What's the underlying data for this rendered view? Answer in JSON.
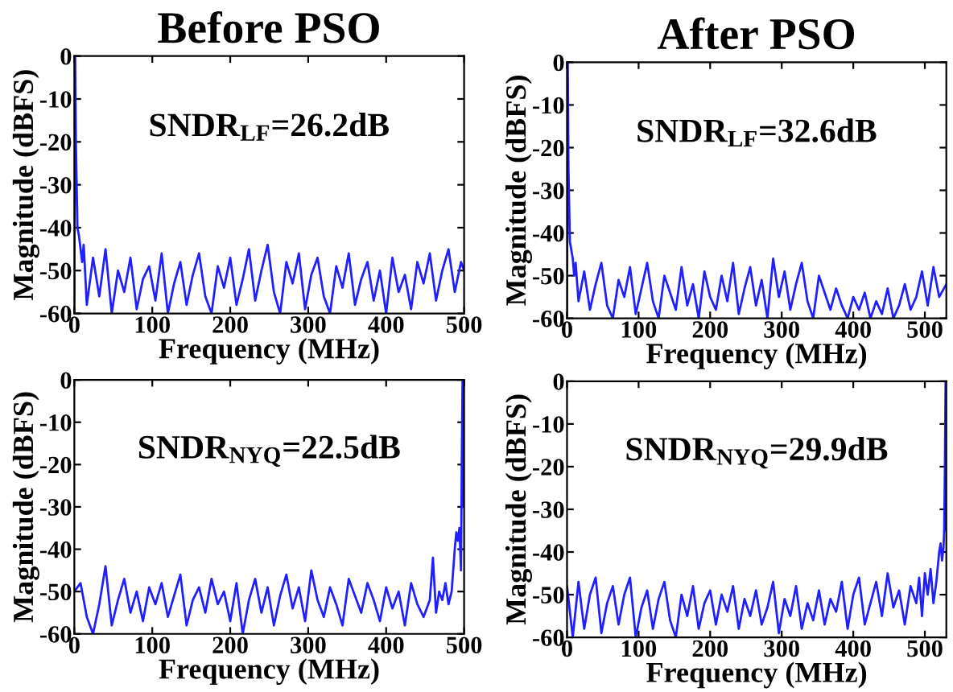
{
  "chart_data": [
    {
      "type": "line",
      "title": "Before PSO",
      "xlabel": "Frequency (MHz)",
      "ylabel": "Magnitude (dBFS)",
      "annotations": [
        "SNDR$_{LF}$=26.2dB"
      ],
      "xlim": [
        0,
        500
      ],
      "ylim": [
        -60,
        0
      ],
      "xticks": [
        0,
        100,
        200,
        300,
        400,
        500
      ],
      "yticks": [
        -60,
        -50,
        -40,
        -30,
        -20,
        -10,
        0
      ],
      "grid": false,
      "legend": false,
      "series": [
        {
          "color": "#1f1fff",
          "x": [
            0,
            1,
            2,
            4,
            6,
            8,
            10,
            12,
            16,
            24,
            32,
            40,
            48,
            56,
            64,
            72,
            80,
            88,
            96,
            104,
            112,
            120,
            128,
            136,
            144,
            152,
            160,
            168,
            176,
            184,
            192,
            200,
            208,
            216,
            224,
            232,
            240,
            248,
            256,
            264,
            272,
            280,
            288,
            296,
            304,
            312,
            320,
            328,
            336,
            344,
            352,
            360,
            368,
            376,
            384,
            392,
            400,
            408,
            416,
            424,
            432,
            440,
            448,
            456,
            464,
            472,
            480,
            488,
            496,
            500
          ],
          "values": [
            -60,
            0,
            -20,
            -40,
            -42,
            -45,
            -48,
            -44,
            -58,
            -47,
            -56,
            -45,
            -60,
            -50,
            -55,
            -47,
            -59,
            -52,
            -49,
            -57,
            -46,
            -60,
            -53,
            -48,
            -58,
            -51,
            -46,
            -56,
            -60,
            -49,
            -54,
            -47,
            -58,
            -52,
            -45,
            -57,
            -50,
            -44,
            -55,
            -60,
            -48,
            -53,
            -46,
            -59,
            -51,
            -47,
            -56,
            -60,
            -49,
            -54,
            -46,
            -58,
            -52,
            -48,
            -57,
            -50,
            -60,
            -47,
            -55,
            -51,
            -59,
            -48,
            -53,
            -46,
            -57,
            -50,
            -45,
            -55,
            -48,
            -50
          ]
        }
      ]
    },
    {
      "type": "line",
      "title": "After PSO",
      "xlabel": "Frequency (MHz)",
      "ylabel": "Magnitude (dBFS)",
      "annotations": [
        "SNDR$_{LF}$=32.6dB"
      ],
      "xlim": [
        0,
        530
      ],
      "ylim": [
        -60,
        0
      ],
      "xticks": [
        0,
        100,
        200,
        300,
        400,
        500
      ],
      "yticks": [
        -60,
        -50,
        -40,
        -30,
        -20,
        -10,
        0
      ],
      "grid": false,
      "legend": false,
      "series": [
        {
          "color": "#1f1fff",
          "x": [
            0,
            1,
            2,
            4,
            6,
            8,
            10,
            12,
            16,
            24,
            32,
            40,
            48,
            56,
            64,
            72,
            80,
            88,
            96,
            104,
            112,
            120,
            128,
            136,
            144,
            152,
            160,
            168,
            176,
            184,
            192,
            200,
            208,
            216,
            224,
            232,
            240,
            248,
            256,
            264,
            272,
            280,
            288,
            296,
            304,
            312,
            320,
            328,
            336,
            344,
            352,
            360,
            368,
            376,
            384,
            392,
            400,
            408,
            416,
            424,
            432,
            440,
            448,
            456,
            464,
            472,
            480,
            488,
            496,
            504,
            512,
            520,
            530
          ],
          "values": [
            -60,
            0,
            -25,
            -42,
            -44,
            -46,
            -50,
            -47,
            -56,
            -49,
            -58,
            -52,
            -47,
            -57,
            -60,
            -51,
            -55,
            -48,
            -59,
            -53,
            -47,
            -56,
            -60,
            -50,
            -54,
            -58,
            -48,
            -57,
            -52,
            -60,
            -49,
            -55,
            -58,
            -50,
            -56,
            -47,
            -59,
            -53,
            -48,
            -57,
            -51,
            -60,
            -46,
            -55,
            -49,
            -58,
            -52,
            -47,
            -56,
            -60,
            -50,
            -54,
            -58,
            -53,
            -57,
            -60,
            -55,
            -58,
            -54,
            -60,
            -56,
            -59,
            -53,
            -60,
            -57,
            -52,
            -58,
            -55,
            -49,
            -57,
            -48,
            -55,
            -52
          ]
        }
      ]
    },
    {
      "type": "line",
      "xlabel": "Frequency (MHz)",
      "ylabel": "Magnitude (dBFS)",
      "annotations": [
        "SNDR$_{NYQ}$=22.5dB"
      ],
      "xlim": [
        0,
        500
      ],
      "ylim": [
        -60,
        0
      ],
      "xticks": [
        0,
        100,
        200,
        300,
        400,
        500
      ],
      "yticks": [
        -60,
        -50,
        -40,
        -30,
        -20,
        -10,
        0
      ],
      "grid": false,
      "legend": false,
      "series": [
        {
          "color": "#1f1fff",
          "x": [
            0,
            8,
            16,
            24,
            32,
            40,
            48,
            56,
            64,
            72,
            80,
            88,
            96,
            104,
            112,
            120,
            128,
            136,
            144,
            152,
            160,
            168,
            176,
            184,
            192,
            200,
            208,
            216,
            224,
            232,
            240,
            248,
            256,
            264,
            272,
            280,
            288,
            296,
            304,
            312,
            320,
            328,
            336,
            344,
            352,
            360,
            368,
            376,
            384,
            392,
            400,
            408,
            416,
            424,
            432,
            440,
            448,
            456,
            460,
            464,
            468,
            472,
            476,
            480,
            484,
            488,
            490,
            492,
            494,
            496,
            497,
            498,
            499
          ],
          "values": [
            -50,
            -48,
            -56,
            -60,
            -53,
            -44,
            -58,
            -52,
            -47,
            -55,
            -50,
            -57,
            -49,
            -53,
            -48,
            -56,
            -51,
            -46,
            -58,
            -52,
            -49,
            -55,
            -47,
            -53,
            -50,
            -57,
            -48,
            -60,
            -52,
            -47,
            -55,
            -49,
            -58,
            -51,
            -46,
            -54,
            -49,
            -57,
            -45,
            -52,
            -56,
            -49,
            -53,
            -58,
            -47,
            -51,
            -55,
            -48,
            -52,
            -57,
            -49,
            -54,
            -50,
            -58,
            -48,
            -53,
            -56,
            -52,
            -42,
            -55,
            -50,
            -52,
            -48,
            -53,
            -50,
            -40,
            -36,
            -38,
            -35,
            -45,
            -20,
            0,
            -30
          ]
        }
      ]
    },
    {
      "type": "line",
      "xlabel": "Frequency (MHz)",
      "ylabel": "Magnitude (dBFS)",
      "annotations": [
        "SNDR$_{NYQ}$=29.9dB"
      ],
      "xlim": [
        0,
        530
      ],
      "ylim": [
        -60,
        0
      ],
      "xticks": [
        0,
        100,
        200,
        300,
        400,
        500
      ],
      "yticks": [
        -60,
        -50,
        -40,
        -30,
        -20,
        -10,
        0
      ],
      "grid": false,
      "legend": false,
      "series": [
        {
          "color": "#1f1fff",
          "x": [
            0,
            8,
            16,
            24,
            32,
            40,
            48,
            56,
            64,
            72,
            80,
            88,
            96,
            104,
            112,
            120,
            128,
            136,
            144,
            152,
            160,
            168,
            176,
            184,
            192,
            200,
            208,
            216,
            224,
            232,
            240,
            248,
            256,
            264,
            272,
            280,
            288,
            296,
            304,
            312,
            320,
            328,
            336,
            344,
            352,
            360,
            368,
            376,
            384,
            392,
            400,
            408,
            416,
            424,
            432,
            440,
            448,
            456,
            464,
            472,
            480,
            488,
            492,
            496,
            500,
            504,
            508,
            512,
            516,
            520,
            522,
            524,
            526,
            527,
            528,
            529,
            530
          ],
          "values": [
            -48,
            -60,
            -47,
            -58,
            -50,
            -46,
            -59,
            -52,
            -48,
            -57,
            -50,
            -46,
            -60,
            -53,
            -49,
            -58,
            -51,
            -47,
            -56,
            -60,
            -50,
            -55,
            -48,
            -58,
            -52,
            -49,
            -57,
            -50,
            -54,
            -48,
            -58,
            -51,
            -55,
            -49,
            -57,
            -53,
            -47,
            -59,
            -51,
            -55,
            -48,
            -58,
            -52,
            -56,
            -49,
            -57,
            -51,
            -54,
            -47,
            -58,
            -50,
            -46,
            -57,
            -52,
            -47,
            -55,
            -45,
            -53,
            -49,
            -57,
            -48,
            -52,
            -46,
            -55,
            -45,
            -50,
            -44,
            -52,
            -47,
            -40,
            -38,
            -42,
            -39,
            -35,
            -20,
            0,
            -35
          ]
        }
      ]
    }
  ]
}
